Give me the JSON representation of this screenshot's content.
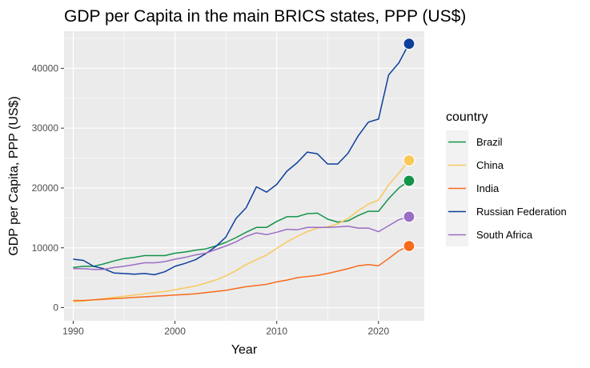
{
  "chart_data": {
    "type": "line",
    "title": "GDP per Capita in the main BRICS states, PPP (US$)",
    "xlabel": "Year",
    "ylabel": "GDP per Capita, PPP (US$)",
    "xlim": [
      1989.1,
      2024.5
    ],
    "ylim": [
      -2200,
      46200
    ],
    "x_ticks": [
      1990,
      2000,
      2010,
      2020
    ],
    "y_ticks": [
      0,
      10000,
      20000,
      30000,
      40000
    ],
    "grid": true,
    "legend_position": "right",
    "legend_title": "country",
    "x": [
      1990,
      1991,
      1992,
      1993,
      1994,
      1995,
      1996,
      1997,
      1998,
      1999,
      2000,
      2001,
      2002,
      2003,
      2004,
      2005,
      2006,
      2007,
      2008,
      2009,
      2010,
      2011,
      2012,
      2013,
      2014,
      2015,
      2016,
      2017,
      2018,
      2019,
      2020,
      2021,
      2022,
      2023
    ],
    "series": [
      {
        "name": "Brazil",
        "color": "#14934a",
        "values": [
          6700,
          6900,
          6900,
          7300,
          7800,
          8200,
          8400,
          8700,
          8700,
          8700,
          9100,
          9300,
          9600,
          9800,
          10300,
          10900,
          11700,
          12600,
          13400,
          13400,
          14400,
          15200,
          15200,
          15700,
          15800,
          14800,
          14300,
          14500,
          15400,
          16100,
          16100,
          18200,
          20000,
          21200
        ]
      },
      {
        "name": "China",
        "color": "#f9c95a",
        "values": [
          1000,
          1100,
          1300,
          1500,
          1700,
          1900,
          2100,
          2300,
          2500,
          2700,
          3000,
          3300,
          3600,
          4100,
          4600,
          5300,
          6200,
          7200,
          8000,
          8800,
          9900,
          11000,
          11900,
          12700,
          13300,
          13500,
          14000,
          14900,
          16200,
          17300,
          18000,
          20500,
          22500,
          24600
        ]
      },
      {
        "name": "India",
        "color": "#f76b1c",
        "values": [
          1200,
          1200,
          1300,
          1400,
          1500,
          1600,
          1700,
          1800,
          1900,
          2000,
          2100,
          2200,
          2300,
          2500,
          2700,
          2900,
          3200,
          3500,
          3700,
          3900,
          4300,
          4600,
          5000,
          5200,
          5400,
          5700,
          6100,
          6500,
          7000,
          7200,
          7000,
          8200,
          9500,
          10300
        ]
      },
      {
        "name": "Russian Federation",
        "color": "#0d3f9c",
        "values": [
          8100,
          7900,
          6900,
          6500,
          5800,
          5700,
          5600,
          5700,
          5500,
          6000,
          6900,
          7400,
          8000,
          9000,
          10200,
          11800,
          14900,
          16700,
          20200,
          19300,
          20600,
          22800,
          24200,
          26000,
          25700,
          24000,
          24000,
          25800,
          28700,
          31000,
          31500,
          38900,
          40900,
          44100
        ]
      },
      {
        "name": "South Africa",
        "color": "#9b6dc4",
        "values": [
          6500,
          6500,
          6400,
          6400,
          6700,
          6900,
          7200,
          7500,
          7500,
          7700,
          8100,
          8400,
          8800,
          9100,
          9700,
          10300,
          11000,
          11900,
          12500,
          12200,
          12600,
          13100,
          13000,
          13400,
          13400,
          13400,
          13500,
          13600,
          13300,
          13300,
          12700,
          13700,
          14700,
          15200
        ]
      }
    ]
  }
}
